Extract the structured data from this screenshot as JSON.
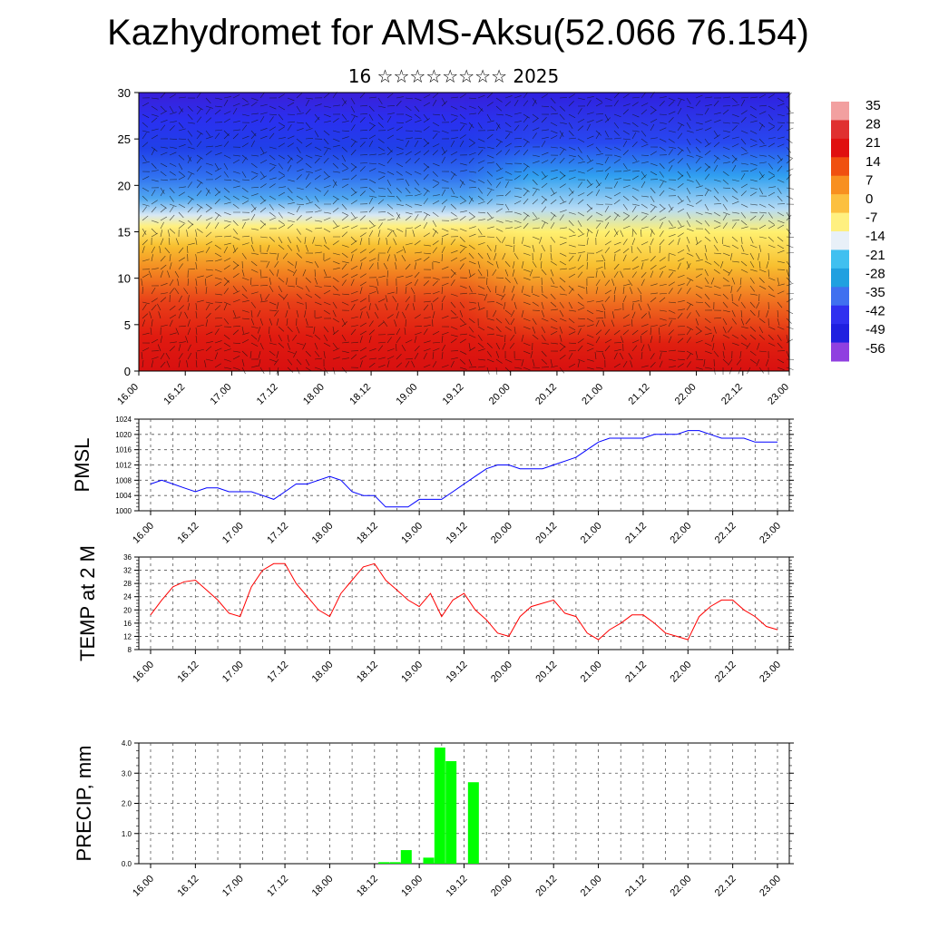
{
  "title": "Kazhydromet for AMS-Aksu(52.066 76.154)",
  "subtitle": "16 ☆☆☆☆☆☆☆☆ 2025",
  "time_labels": [
    "16.00",
    "16.12",
    "17.00",
    "17.12",
    "18.00",
    "18.12",
    "19.00",
    "19.12",
    "20.00",
    "20.12",
    "21.00",
    "21.12",
    "22.00",
    "22.12",
    "23.00"
  ],
  "colorbar": {
    "labels": [
      "35",
      "28",
      "21",
      "14",
      "7",
      "0",
      "-7",
      "-14",
      "-21",
      "-28",
      "-35",
      "-42",
      "-49",
      "-56"
    ],
    "colors": [
      "#f2a0a0",
      "#e03030",
      "#e01010",
      "#f05010",
      "#f89020",
      "#fcc040",
      "#fff080",
      "#e8f0f8",
      "#40c0f0",
      "#20a0e0",
      "#4070f0",
      "#3030f0",
      "#2020e0",
      "#9040e0"
    ]
  },
  "chart_data": [
    {
      "type": "heatmap",
      "title": "",
      "xlabel": "",
      "ylabel": "",
      "ylim": [
        0,
        30
      ],
      "yticks": [
        0,
        5,
        10,
        15,
        20,
        25,
        30
      ],
      "x_tick_labels": [
        "16.00",
        "16.12",
        "17.00",
        "17.12",
        "18.00",
        "18.12",
        "19.00",
        "19.12",
        "20.00",
        "20.12",
        "21.00",
        "21.12",
        "22.00",
        "22.12",
        "23.00"
      ],
      "color_levels": [
        35,
        28,
        21,
        14,
        7,
        0,
        -7,
        -14,
        -21,
        -28,
        -35,
        -42,
        -49,
        -56
      ],
      "layers": [
        {
          "level_top": 30,
          "temp": -56
        },
        {
          "level_top": 26,
          "temp": -49
        },
        {
          "level_top": 22,
          "temp": -35
        },
        {
          "level_top": 18,
          "temp": -14
        },
        {
          "level_top": 16,
          "temp": 0
        },
        {
          "level_top": 13,
          "temp": 14
        },
        {
          "level_top": 8,
          "temp": 28
        }
      ]
    },
    {
      "type": "line",
      "ylabel": "PMSL",
      "ylim": [
        1000,
        1024
      ],
      "yticks": [
        1000,
        1004,
        1008,
        1012,
        1016,
        1020,
        1024
      ],
      "x_tick_labels": [
        "16.00",
        "16.12",
        "17.00",
        "17.12",
        "18.00",
        "18.12",
        "19.00",
        "19.12",
        "20.00",
        "20.12",
        "21.00",
        "21.12",
        "22.00",
        "22.12",
        "23.00"
      ],
      "series": [
        {
          "color": "#0000ff",
          "x": [
            0,
            3,
            6,
            9,
            12,
            15,
            18,
            21,
            24,
            27,
            30,
            33,
            36,
            39,
            42,
            45,
            48,
            51,
            54,
            57,
            60,
            63,
            66,
            69,
            72,
            75,
            78,
            81,
            84,
            87,
            90,
            93,
            96,
            99,
            102,
            105,
            108,
            111,
            114,
            117,
            120,
            123,
            126,
            129,
            132,
            135,
            138,
            141,
            144,
            147,
            150,
            153,
            156,
            159,
            162,
            165,
            168
          ],
          "values": [
            1007,
            1008,
            1007,
            1006,
            1005,
            1006,
            1006,
            1005,
            1005,
            1005,
            1004,
            1003,
            1005,
            1007,
            1007,
            1008,
            1009,
            1008,
            1005,
            1004,
            1004,
            1001,
            1001,
            1001,
            1003,
            1003,
            1003,
            1005,
            1007,
            1009,
            1011,
            1012,
            1012,
            1011,
            1011,
            1011,
            1012,
            1013,
            1014,
            1016,
            1018,
            1019,
            1019,
            1019,
            1019,
            1020,
            1020,
            1020,
            1021,
            1021,
            1020,
            1019,
            1019,
            1019,
            1018,
            1018,
            1018
          ]
        }
      ]
    },
    {
      "type": "line",
      "ylabel": "TEMP at 2 M",
      "ylim": [
        8,
        36
      ],
      "yticks": [
        8,
        12,
        16,
        20,
        24,
        28,
        32,
        36
      ],
      "x_tick_labels": [
        "16.00",
        "16.12",
        "17.00",
        "17.12",
        "18.00",
        "18.12",
        "19.00",
        "19.12",
        "20.00",
        "20.12",
        "21.00",
        "21.12",
        "22.00",
        "22.12",
        "23.00"
      ],
      "series": [
        {
          "color": "#ff0000",
          "x": [
            0,
            3,
            6,
            9,
            12,
            15,
            18,
            21,
            24,
            27,
            30,
            33,
            36,
            39,
            42,
            45,
            48,
            51,
            54,
            57,
            60,
            63,
            66,
            69,
            72,
            75,
            78,
            81,
            84,
            87,
            90,
            93,
            96,
            99,
            102,
            105,
            108,
            111,
            114,
            117,
            120,
            123,
            126,
            129,
            132,
            135,
            138,
            141,
            144,
            147,
            150,
            153,
            156,
            159,
            162,
            165,
            168
          ],
          "values": [
            18.5,
            23,
            27,
            28.5,
            29,
            26,
            23,
            19,
            18,
            27,
            32,
            34,
            34,
            28,
            24,
            20,
            18,
            25,
            29,
            33,
            34,
            29,
            26,
            23,
            21,
            25,
            18,
            23,
            25,
            20,
            17,
            13,
            12,
            18,
            21,
            22,
            23,
            19,
            18,
            13,
            11,
            14,
            16,
            18.5,
            18.5,
            16,
            13,
            12,
            11,
            18,
            21,
            23,
            23,
            20,
            18,
            15,
            14
          ]
        }
      ]
    },
    {
      "type": "bar",
      "ylabel": "PRECIP, mm",
      "ylim": [
        0,
        4
      ],
      "yticks": [
        0.0,
        1.0,
        2.0,
        3.0,
        4.0
      ],
      "ytick_labels": [
        "0.0",
        "1.0",
        "2.0",
        "3.0",
        "4.0"
      ],
      "x_tick_labels": [
        "16.00",
        "16.12",
        "17.00",
        "17.12",
        "18.00",
        "18.12",
        "19.00",
        "19.12",
        "20.00",
        "20.12",
        "21.00",
        "21.12",
        "22.00",
        "22.12",
        "23.00"
      ],
      "bar_color": "#00ff00",
      "x": [
        63,
        66,
        69,
        72,
        75,
        78,
        81,
        84,
        87
      ],
      "values": [
        0.05,
        0.05,
        0.45,
        0,
        0.2,
        3.85,
        3.4,
        0,
        2.7
      ]
    }
  ]
}
